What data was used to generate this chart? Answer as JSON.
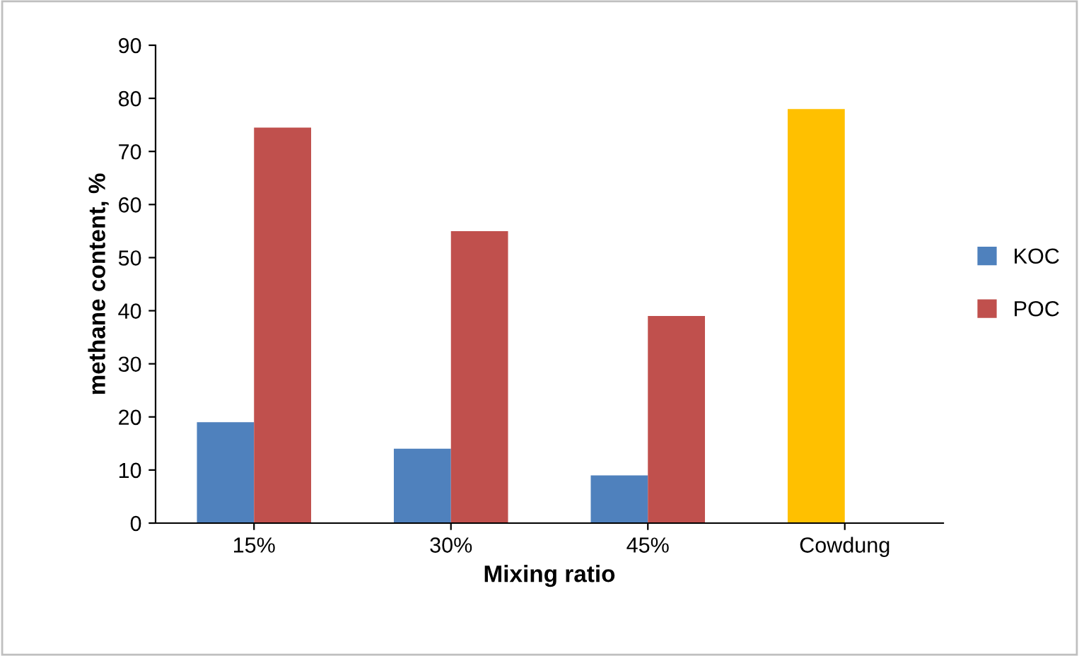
{
  "chart_data": {
    "type": "bar",
    "xlabel": "Mixing ratio",
    "ylabel": "methane content, %",
    "categories": [
      "15%",
      "30%",
      "45%",
      "Cowdung"
    ],
    "series": [
      {
        "name": "KOC",
        "color": "#4f81bd",
        "colors": [
          "#4f81bd",
          "#4f81bd",
          "#4f81bd",
          "#ffc000"
        ],
        "values": [
          19,
          14,
          9,
          78
        ]
      },
      {
        "name": "POC",
        "color": "#c0504d",
        "values": [
          74.5,
          55,
          39,
          null
        ]
      }
    ],
    "ylim": [
      0,
      90
    ],
    "yticks": [
      0,
      10,
      20,
      30,
      40,
      50,
      60,
      70,
      80,
      90
    ],
    "grid": false,
    "legend": "right"
  }
}
